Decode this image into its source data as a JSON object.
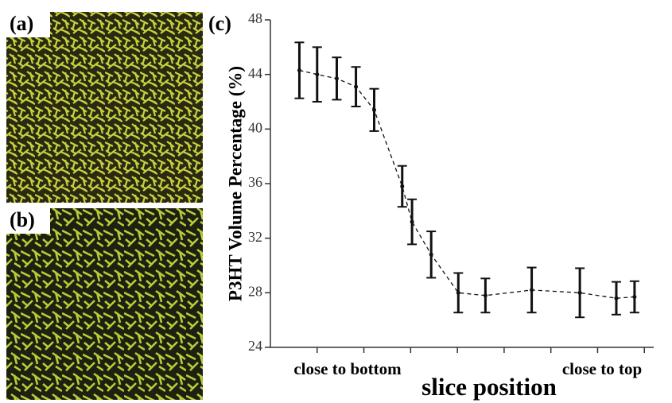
{
  "chart_data": {
    "type": "errorbar-line",
    "panel_labels": [
      "(a)",
      "(b)",
      "(c)"
    ],
    "ylabel": "P3HT Volume Percentage (%)",
    "xlabel": "slice position",
    "x_annotations": [
      "close to bottom",
      "close to top"
    ],
    "x": [
      0.62,
      1.0,
      1.42,
      1.83,
      2.22,
      2.82,
      3.03,
      3.44,
      4.02,
      4.6,
      5.59,
      6.62,
      7.4,
      7.79
    ],
    "values": [
      44.3,
      44.0,
      43.7,
      43.1,
      41.4,
      35.8,
      33.2,
      30.8,
      28.0,
      27.8,
      28.2,
      28.0,
      27.6,
      27.7
    ],
    "errors": [
      2.05,
      2.0,
      1.55,
      1.45,
      1.55,
      1.5,
      1.65,
      1.7,
      1.45,
      1.25,
      1.65,
      1.8,
      1.2,
      1.15
    ],
    "color": "#111111",
    "xlim": [
      0,
      8.2
    ],
    "xticks": [
      1,
      2,
      3,
      4,
      5,
      6,
      7,
      8
    ],
    "ylim": [
      24,
      48
    ],
    "yticks": [
      24,
      28,
      32,
      36,
      40,
      44,
      48
    ]
  }
}
